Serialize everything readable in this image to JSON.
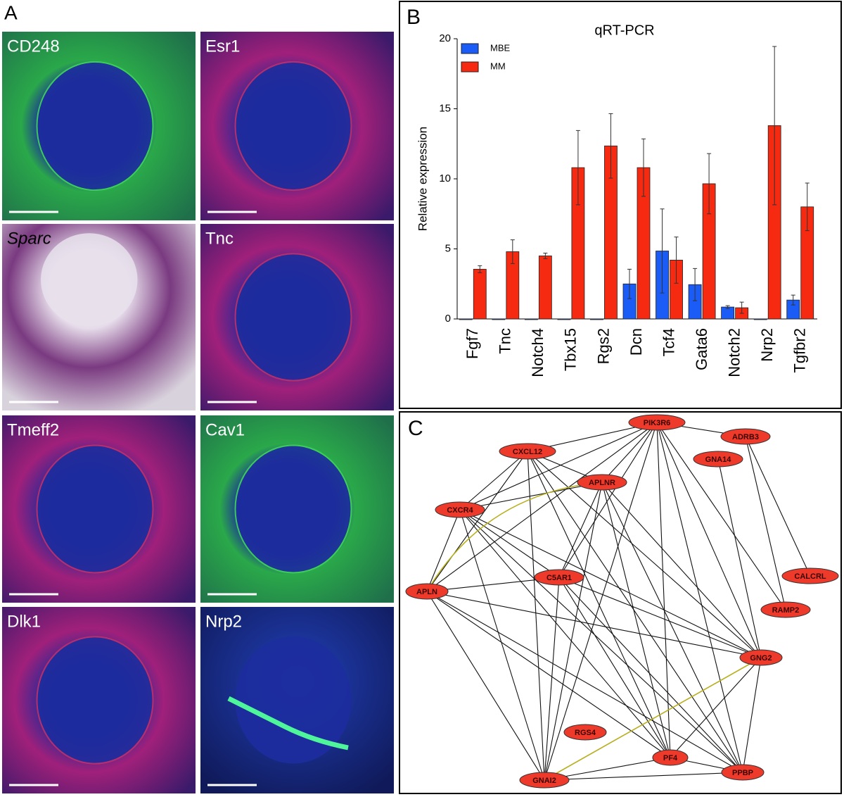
{
  "panels": {
    "a": "A",
    "b": "B",
    "c": "C"
  },
  "images": [
    "CD248",
    "Esr1",
    "Sparc",
    "Tnc",
    "Tmeff2",
    "Cav1",
    "Dlk1",
    "Nrp2"
  ],
  "chart_data": {
    "type": "bar",
    "title": "qRT-PCR",
    "ylabel": "Relative expression",
    "categories": [
      "Fgf7",
      "Tnc",
      "Notch4",
      "Tbx15",
      "Rgs2",
      "Dcn",
      "Tcf4",
      "Gata6",
      "Notch2",
      "Nrp2",
      "Tgfbr2"
    ],
    "series": [
      {
        "name": "MBE",
        "color": "#1a5cf5",
        "values": [
          0,
          0,
          0,
          0,
          0,
          2.5,
          4.85,
          2.45,
          0.85,
          0,
          1.35
        ],
        "errors": [
          0,
          0,
          0,
          0,
          0,
          1.05,
          3.0,
          1.15,
          0.1,
          0,
          0.35
        ]
      },
      {
        "name": "MM",
        "color": "#f52a10",
        "values": [
          3.55,
          4.8,
          4.5,
          10.8,
          12.35,
          10.8,
          4.2,
          9.65,
          0.8,
          13.8,
          8.0
        ],
        "errors": [
          0.25,
          0.85,
          0.2,
          2.65,
          2.3,
          2.05,
          1.65,
          2.15,
          0.4,
          5.65,
          1.7
        ]
      }
    ],
    "ylim": [
      0,
      20
    ],
    "yticks": [
      0,
      5,
      10,
      15,
      20
    ],
    "grid": false,
    "legend": "top-left"
  },
  "network": {
    "nodes": [
      "PIK3R6",
      "ADRB3",
      "CXCL12",
      "GNA14",
      "APLNR",
      "CXCR4",
      "C5AR1",
      "CALCRL",
      "APLN",
      "RAMP2",
      "GNG2",
      "RGS4",
      "PF4",
      "PPBP",
      "GNAI2"
    ]
  }
}
